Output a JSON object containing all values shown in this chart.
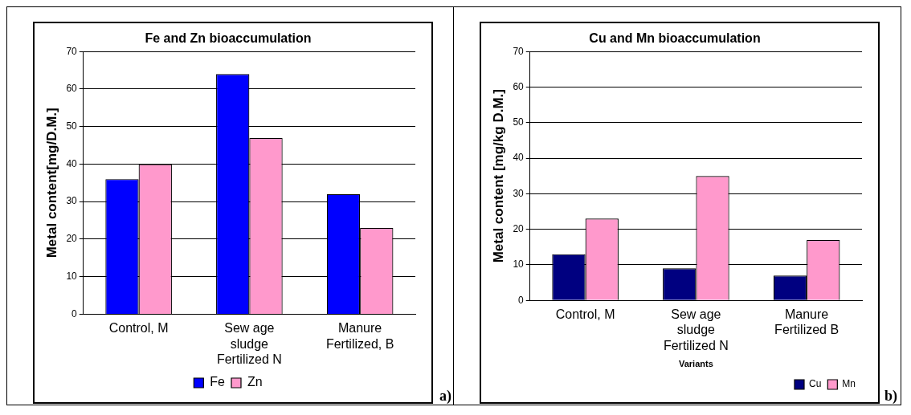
{
  "chart_data": [
    {
      "type": "bar",
      "title": "Fe and Zn bioaccumulation",
      "ylabel": "Metal content[mg/D.M.]",
      "categories": [
        "Control, M",
        "Sew age sludge Fertilized N",
        "Manure Fertilized, B"
      ],
      "series": [
        {
          "name": "Fe",
          "color": "#0000ff",
          "values": [
            36,
            64,
            32
          ]
        },
        {
          "name": "Zn",
          "color": "#ff99cc",
          "values": [
            40,
            47,
            23
          ]
        }
      ],
      "ylim": [
        0,
        70
      ],
      "yticks": [
        0,
        10,
        20,
        30,
        40,
        50,
        60,
        70
      ],
      "grid": "y",
      "legend": "bottom",
      "annotations": [
        "a)"
      ]
    },
    {
      "type": "bar",
      "title": "Cu and Mn bioaccumulation",
      "ylabel": "Metal content [mg/kg D.M.]",
      "xlabel": "Variants",
      "categories": [
        "Control, M",
        "Sew age sludge Fertilized N",
        "Manure Fertilized B"
      ],
      "series": [
        {
          "name": "Cu",
          "color": "#000080",
          "values": [
            13,
            9,
            7
          ]
        },
        {
          "name": "Mn",
          "color": "#ff99cc",
          "values": [
            23,
            35,
            17
          ]
        }
      ],
      "ylim": [
        0,
        70
      ],
      "yticks": [
        0,
        10,
        20,
        30,
        40,
        50,
        60,
        70
      ],
      "grid": "y",
      "legend": "bottom right",
      "annotations": [
        "b)"
      ]
    }
  ]
}
